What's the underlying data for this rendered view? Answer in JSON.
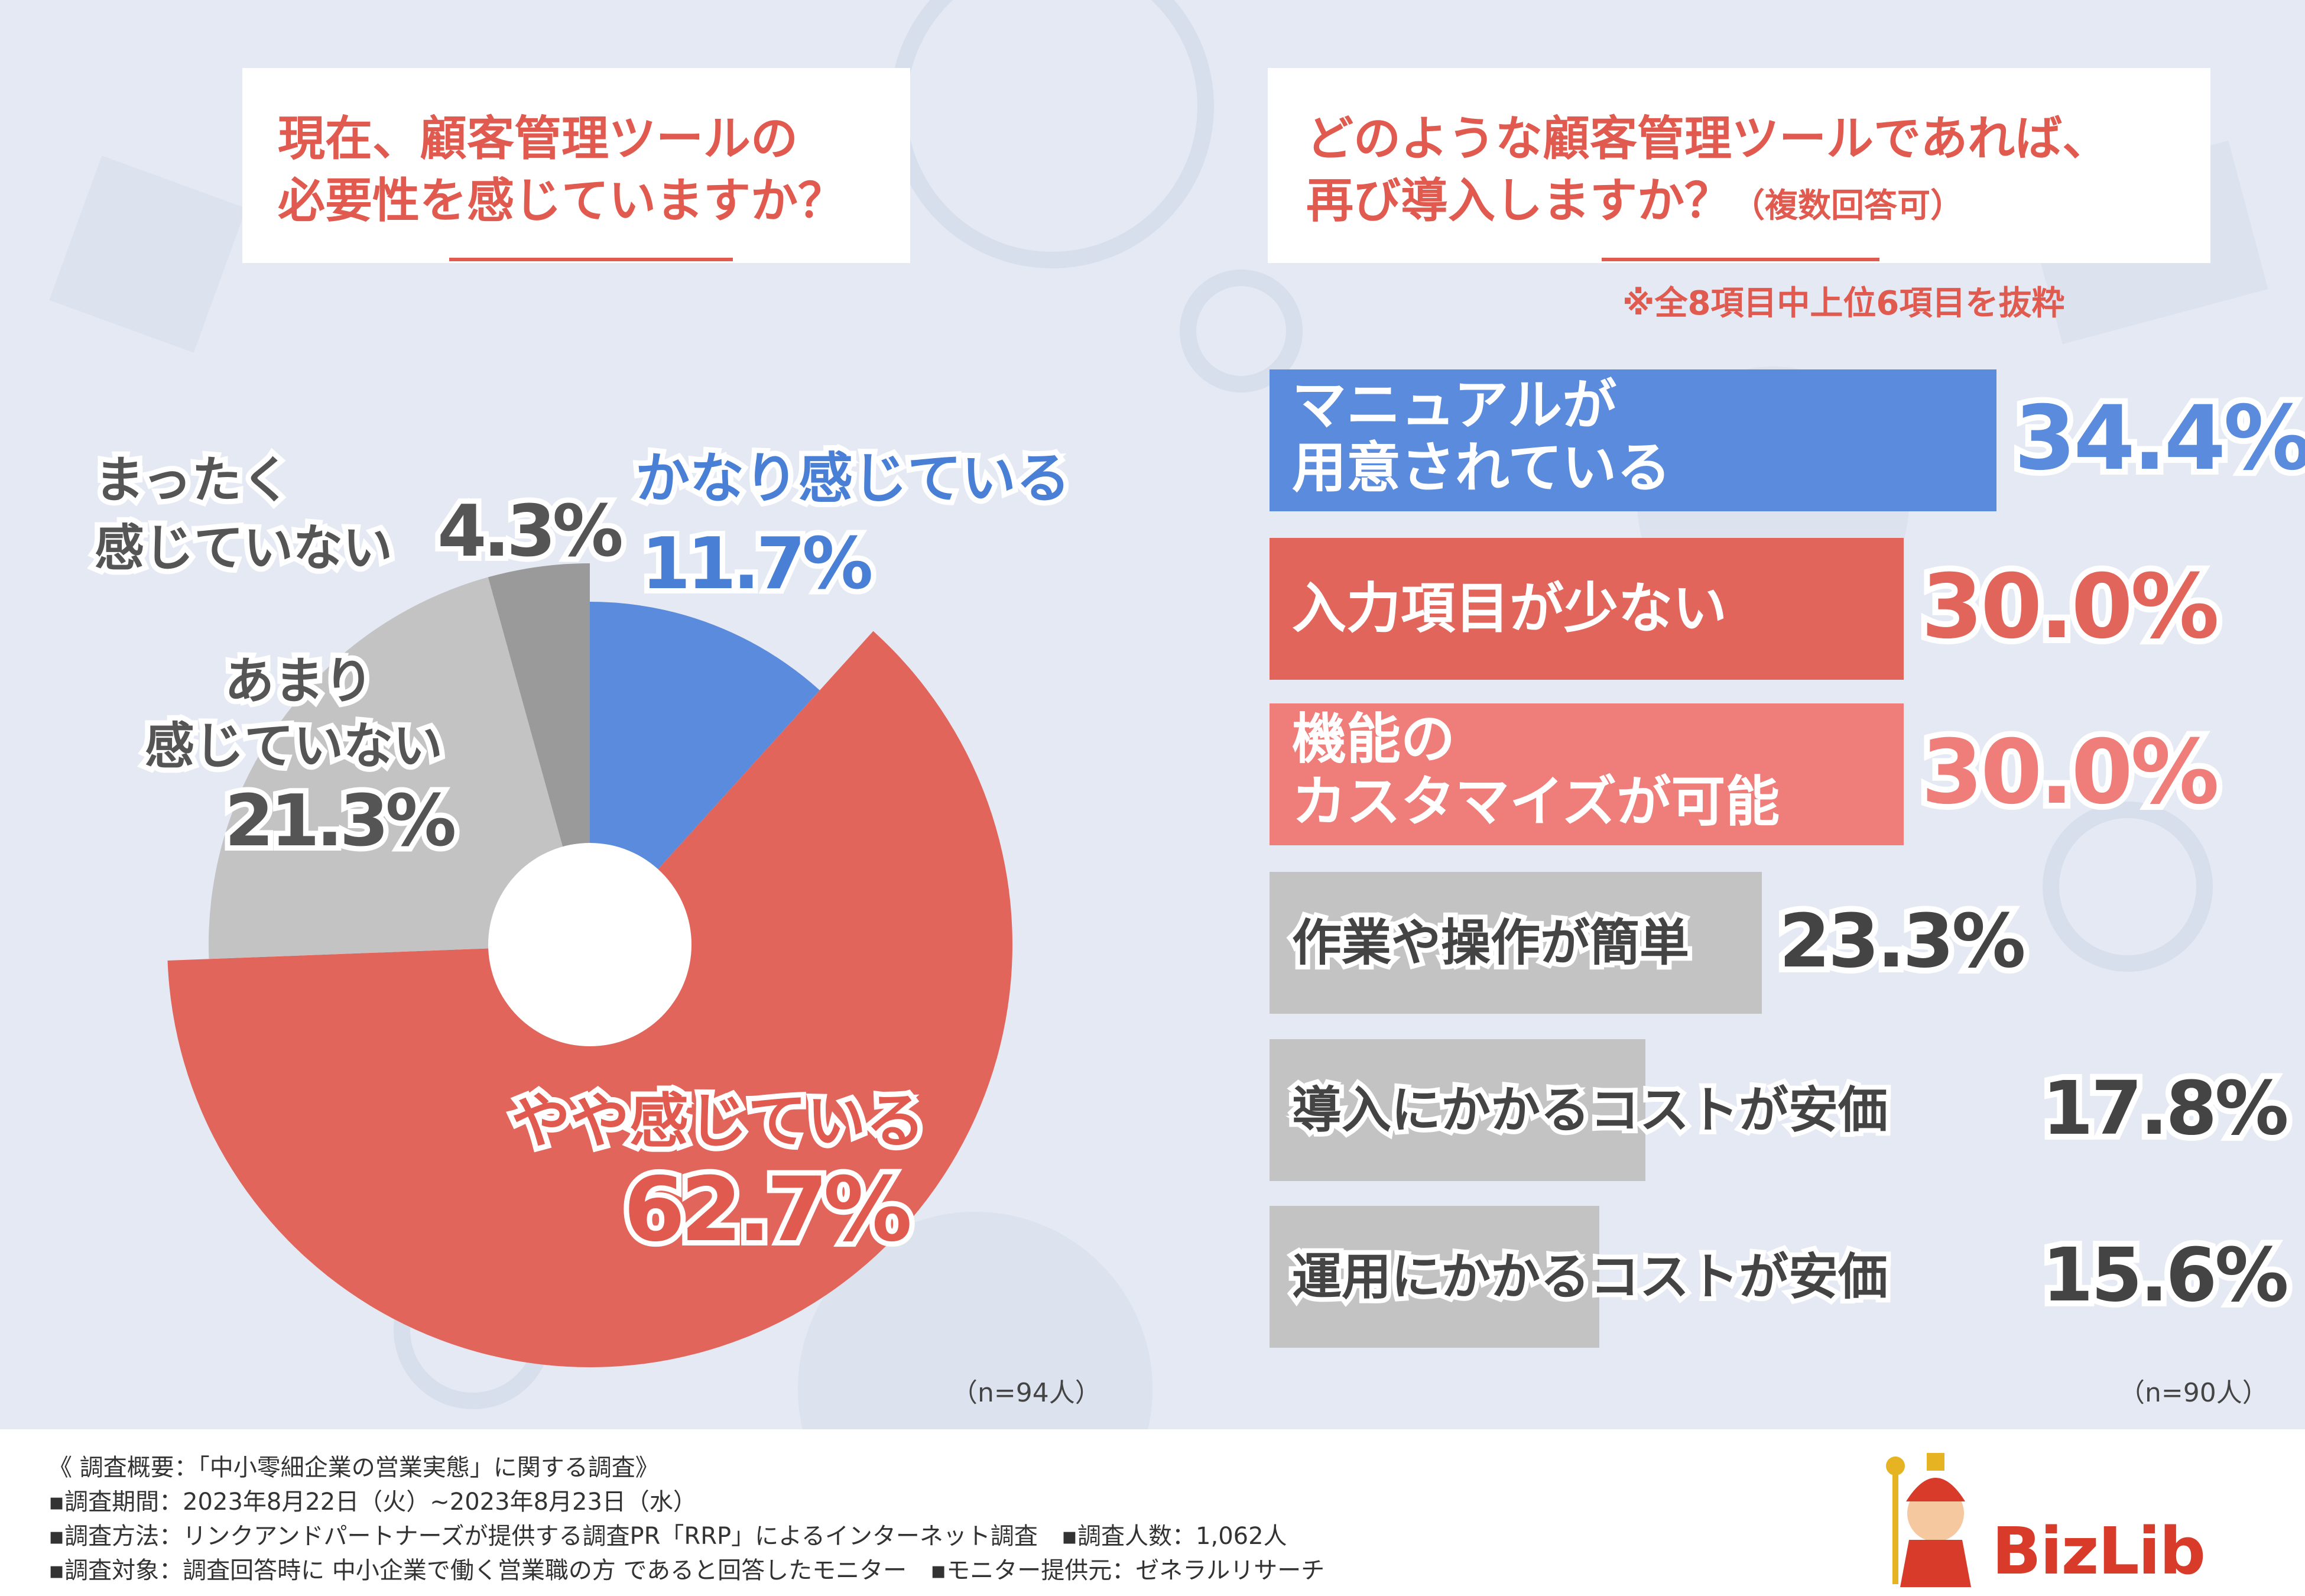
{
  "colors": {
    "background": "#e4e9f3",
    "blue": "#5b8bdc",
    "red": "#e2655c",
    "pink": "#ef7d79",
    "gray": "#c3c3c3",
    "darkgray": "#9a9a9a",
    "accent": "#e05a4f"
  },
  "left": {
    "question_line1": "現在、顧客管理ツールの",
    "question_line2": "必要性を感じていますか？",
    "n_label": "（n=94人）"
  },
  "right": {
    "question_line1": "どのような顧客管理ツールであれば、",
    "question_line2": "再び導入しますか？",
    "question_suffix": "（複数回答可）",
    "note": "※全8項目中上位6項目を抜粋",
    "n_label": "（n=90人）"
  },
  "chart_data": [
    {
      "type": "pie",
      "title": "現在、顧客管理ツールの必要性を感じていますか？",
      "donut": true,
      "slices": [
        {
          "label_line1": "かなり感じている",
          "label_line2": "",
          "value": 11.7,
          "value_text": "11.7%",
          "color": "#5b8bdc"
        },
        {
          "label_line1": "やや感じている",
          "label_line2": "",
          "value": 62.7,
          "value_text": "62.7%",
          "color": "#e2655c"
        },
        {
          "label_line1": "あまり",
          "label_line2": "感じていない",
          "value": 21.3,
          "value_text": "21.3%",
          "color": "#c3c3c3"
        },
        {
          "label_line1": "まったく",
          "label_line2": "感じていない",
          "value": 4.3,
          "value_text": "4.3%",
          "color": "#9a9a9a"
        }
      ],
      "n": "n=94人"
    },
    {
      "type": "bar",
      "orientation": "horizontal",
      "title": "どのような顧客管理ツールであれば、再び導入しますか？（複数回答可）",
      "xlim": [
        0,
        40
      ],
      "bars": [
        {
          "label_line1": "マニュアルが",
          "label_line2": "用意されている",
          "value": 34.4,
          "value_text": "34.4%",
          "color": "#5b8bdc",
          "text_color": "#ffffff",
          "pct_color": "#5b8bdc"
        },
        {
          "label_line1": "入力項目が少ない",
          "label_line2": "",
          "value": 30.0,
          "value_text": "30.0%",
          "color": "#e2655c",
          "text_color": "#ffffff",
          "pct_color": "#e2655c"
        },
        {
          "label_line1": "機能の",
          "label_line2": "カスタマイズが可能",
          "value": 30.0,
          "value_text": "30.0%",
          "color": "#ef7d79",
          "text_color": "#ffffff",
          "pct_color": "#ef7d79"
        },
        {
          "label_line1": "作業や操作が簡単",
          "label_line2": "",
          "value": 23.3,
          "value_text": "23.3%",
          "color": "#c3c3c3",
          "text_color": "#444444",
          "pct_color": "#444444"
        },
        {
          "label_line1": "導入にかかるコストが安価",
          "label_line2": "",
          "value": 17.8,
          "value_text": "17.8%",
          "color": "#c3c3c3",
          "text_color": "#444444",
          "pct_color": "#444444"
        },
        {
          "label_line1": "運用にかかるコストが安価",
          "label_line2": "",
          "value": 15.6,
          "value_text": "15.6%",
          "color": "#c3c3c3",
          "text_color": "#444444",
          "pct_color": "#444444"
        }
      ],
      "n": "n=90人"
    }
  ],
  "footer": {
    "line1": "《 調査概要：「中小零細企業の営業実態」に関する調査》",
    "line2": "▪調査期間：2023年8月22日（火）~2023年8月23日（水）",
    "line3": "▪調査方法：リンクアンドパートナーズが提供する調査PR「RRP」によるインターネット調査　▪調査人数：1,062人",
    "line4": "▪調査対象：調査回答時に 中小企業で働く営業職の方 であると回答したモニター　▪モニター提供元：ゼネラルリサーチ"
  },
  "logo": {
    "text": "BizLib"
  }
}
